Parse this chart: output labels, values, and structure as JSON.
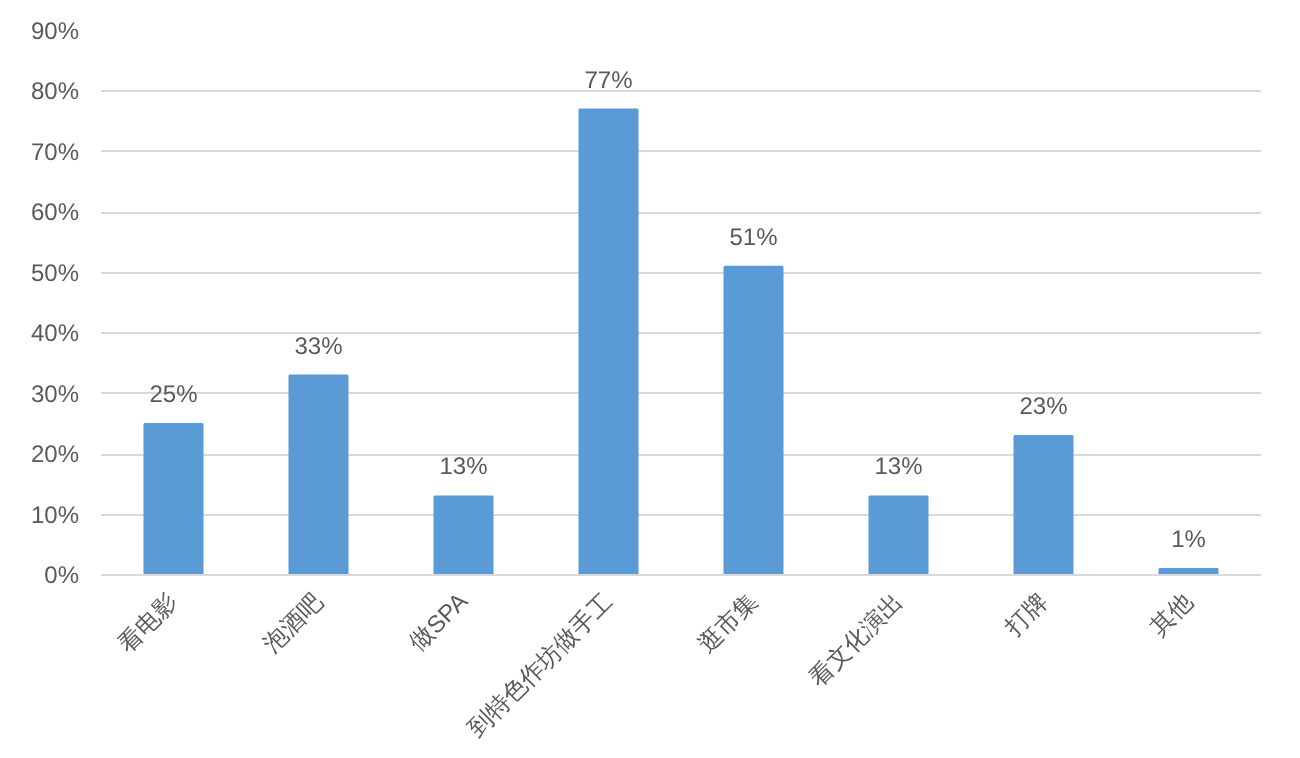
{
  "chart_data": {
    "type": "bar",
    "categories": [
      "看电影",
      "泡酒吧",
      "做SPA",
      "到特色作坊做手工",
      "逛市集",
      "看文化演出",
      "打牌",
      "其他"
    ],
    "values": [
      25,
      33,
      13,
      77,
      51,
      13,
      23,
      1
    ],
    "value_labels": [
      "25%",
      "33%",
      "13%",
      "77%",
      "51%",
      "13%",
      "23%",
      "1%"
    ],
    "color": "#5b9bd5",
    "ylim": [
      0,
      90
    ],
    "yticks": [
      {
        "value": 0,
        "label": "0%"
      },
      {
        "value": 10,
        "label": "10%"
      },
      {
        "value": 20,
        "label": "20%"
      },
      {
        "value": 30,
        "label": "30%"
      },
      {
        "value": 40,
        "label": "40%"
      },
      {
        "value": 50,
        "label": "50%"
      },
      {
        "value": 60,
        "label": "60%"
      },
      {
        "value": 70,
        "label": "70%"
      },
      {
        "value": 80,
        "label": "80%"
      },
      {
        "value": 90,
        "label": "90%"
      }
    ],
    "grid": "y"
  }
}
